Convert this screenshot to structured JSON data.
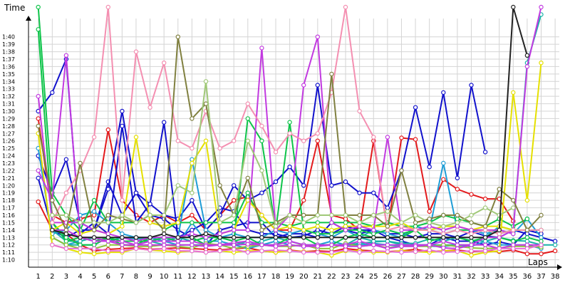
{
  "chart_data": {
    "type": "line",
    "ylabel": "Time",
    "xlabel": "Laps",
    "grid": true,
    "x_ticks": [
      1,
      2,
      3,
      4,
      5,
      6,
      7,
      8,
      9,
      10,
      11,
      12,
      13,
      14,
      15,
      16,
      17,
      18,
      19,
      20,
      21,
      22,
      23,
      24,
      25,
      26,
      27,
      28,
      29,
      30,
      31,
      32,
      33,
      34,
      35,
      36,
      37,
      38
    ],
    "y_tick_labels": [
      "1:10",
      "1:11",
      "1:12",
      "1:13",
      "1:14",
      "1:15",
      "1:16",
      "1:17",
      "1:18",
      "1:19",
      "1:20",
      "1:21",
      "1:22",
      "1:23",
      "1:24",
      "1:25",
      "1:26",
      "1:27",
      "1:28",
      "1:29",
      "1:30",
      "1:31",
      "1:32",
      "1:33",
      "1:34",
      "1:35",
      "1:36",
      "1:37",
      "1:38",
      "1:39",
      "1:40"
    ],
    "y_unit": "seconds",
    "ylim": [
      69,
      104
    ],
    "xlim": [
      0.3,
      38.3
    ],
    "series": [
      {
        "color": "#e31a1c",
        "values": [
          77.8,
          74,
          73.5,
          72,
          71.2,
          71.4,
          71.5,
          71.6,
          71.4,
          71.5,
          71.6,
          71.5,
          71.4,
          71.3,
          71.5,
          71.6,
          71.2,
          71,
          71.3,
          71.1,
          71.2,
          71.1,
          71.5,
          71.3,
          71.2,
          71.1,
          71.2,
          71.4,
          71.1,
          71.2,
          71.3,
          71.1,
          71.2,
          71.1,
          71.3,
          70.8,
          70.8,
          71.2
        ]
      },
      {
        "color": "#e31a1c",
        "values": [
          89,
          76,
          75,
          75.5,
          76,
          87.5,
          78,
          76,
          75,
          76,
          75,
          76,
          74,
          76,
          78,
          78.5,
          76,
          74,
          74,
          78,
          86,
          76,
          75.5,
          74,
          86,
          74,
          86.4,
          86.2,
          76.5,
          80.8,
          79.5,
          78.8,
          78.2,
          78.2,
          75.2,
          null,
          null,
          null
        ]
      },
      {
        "color": "#1111cc",
        "values": [
          84,
          79,
          83.5,
          75,
          74,
          80.5,
          76,
          79,
          76,
          75.5,
          74,
          73,
          72,
          74,
          74.5,
          75,
          75,
          73,
          73.5,
          73.5,
          73,
          75,
          74,
          73.5,
          74,
          73,
          72.5,
          72,
          72,
          73,
          72.5,
          72.5,
          72,
          72.4,
          72,
          74,
          73.5,
          null
        ]
      },
      {
        "color": "#1111cc",
        "values": [
          81,
          74,
          73,
          74,
          74,
          79.5,
          90,
          79,
          77.5,
          76,
          75.5,
          78,
          74,
          76,
          80,
          78,
          79,
          80.5,
          82.5,
          80,
          93.5,
          80,
          80.5,
          79,
          79,
          77,
          82,
          90.5,
          82.5,
          92.5,
          81,
          93.5,
          84.5,
          null,
          null,
          null,
          null,
          null
        ]
      },
      {
        "color": "#1111cc",
        "values": [
          90,
          92.5,
          97,
          73.5,
          75,
          73.5,
          88,
          75,
          77.5,
          88.5,
          73,
          74,
          75,
          77,
          76.5,
          74,
          73.5,
          73.5,
          73,
          73.2,
          74,
          73.5,
          74.5,
          74,
          74,
          73.5,
          73.5,
          73,
          73.5,
          73.5,
          73,
          73.8,
          73.2,
          73,
          74,
          73.5,
          73,
          72.5
        ]
      },
      {
        "color": "#1f9dd6",
        "values": [
          85,
          73,
          72,
          72.5,
          73,
          72.5,
          73,
          72.8,
          73,
          72.5,
          72,
          75,
          72.5,
          72.5,
          72,
          71.5,
          72,
          72.5,
          72,
          71.8,
          72,
          72.5,
          72,
          72,
          72.2,
          72,
          71.8,
          72,
          71.8,
          71.8,
          72,
          71.8,
          72.5,
          72,
          72,
          72,
          71.5,
          null
        ]
      },
      {
        "color": "#1f9dd6",
        "values": [
          null,
          73.5,
          74,
          76,
          76.5,
          75,
          73.5,
          73,
          73,
          72.5,
          73,
          83.5,
          74,
          73,
          73.5,
          73,
          73,
          74,
          73.5,
          74,
          73.5,
          73,
          74,
          73,
          74,
          73.5,
          73,
          74.5,
          74,
          83,
          74,
          74,
          73.5,
          74,
          73.5,
          75.5,
          73,
          null
        ]
      },
      {
        "color": "#19b2a8",
        "values": [
          null,
          74,
          72.5,
          72.5,
          73,
          72.5,
          73,
          73,
          72.5,
          73,
          73,
          72.5,
          73,
          73,
          72.5,
          72,
          72.5,
          73,
          72.5,
          72,
          72,
          72,
          72,
          72.2,
          72.4,
          72.5,
          72.2,
          72.2,
          72.8,
          72.5,
          73,
          72.6,
          72.5,
          73,
          72.6,
          72.5,
          72,
          72
        ]
      },
      {
        "color": "#19b2a8",
        "values": [
          null,
          73,
          72,
          72,
          72,
          73,
          72,
          72,
          72.5,
          72,
          72,
          72,
          72,
          72,
          72,
          72.5,
          72,
          72,
          72.5,
          72,
          72,
          72,
          72,
          73,
          72.5,
          72.5,
          72,
          72,
          72,
          72,
          72,
          72,
          73,
          74.5,
          74,
          96.5,
          103,
          null
        ]
      },
      {
        "color": "#0ec44a",
        "values": [
          104,
          79,
          76,
          74,
          78,
          75,
          75,
          75,
          76,
          74,
          75,
          75,
          75,
          75,
          75,
          79,
          75,
          75,
          74.5,
          75,
          75,
          75,
          75,
          75,
          74.5,
          75,
          74.5,
          74.5,
          75,
          76,
          75.5,
          75,
          74.5,
          75.5,
          74.5,
          75.5,
          null,
          null
        ]
      },
      {
        "color": "#0ec44a",
        "values": [
          101,
          75,
          72.5,
          73,
          72.5,
          73,
          72.5,
          72.5,
          72.5,
          73,
          72.5,
          72.5,
          73,
          73,
          72.5,
          89,
          86,
          74,
          88.5,
          74,
          73.5,
          73.5,
          74,
          74,
          73.5,
          74,
          73.5,
          74,
          74,
          73.5,
          74,
          74,
          74,
          73.5,
          74,
          74,
          74,
          null
        ]
      },
      {
        "color": "#0ec44a",
        "values": [
          null,
          75,
          73,
          72,
          72,
          73,
          72,
          72,
          73,
          73,
          73,
          73,
          72,
          73,
          72.5,
          73,
          72,
          72,
          73,
          73,
          72,
          72,
          73,
          73.5,
          73,
          73,
          73,
          74,
          72.5,
          73,
          73,
          72.5,
          73,
          73,
          72.5,
          73,
          72.5,
          null
        ]
      },
      {
        "color": "#8fc23a",
        "values": [
          null,
          73,
          72,
          71.5,
          71.5,
          72,
          72,
          71.8,
          71.8,
          72,
          71.8,
          71.6,
          72.2,
          72,
          71.5,
          71.8,
          72,
          71.8,
          71.8,
          72,
          71.5,
          71.5,
          72.2,
          71.8,
          72,
          71.6,
          71.8,
          71.8,
          71.8,
          72,
          71.8,
          71.6,
          71.5,
          71.6,
          71.8,
          71.8,
          71.7,
          null
        ]
      },
      {
        "color": "#e5e000",
        "values": [
          87,
          72,
          71.5,
          71,
          70.8,
          71,
          71,
          71.5,
          71.3,
          71.2,
          71,
          71.2,
          71,
          71.2,
          71,
          71.2,
          71.2,
          71,
          71.2,
          71.1,
          71,
          70.6,
          71.2,
          71.2,
          71,
          71,
          71.2,
          71.1,
          71,
          71.2,
          71.2,
          70.6,
          71,
          71.2,
          92.5,
          78,
          96.5,
          null
        ]
      },
      {
        "color": "#e5e000",
        "values": [
          null,
          74,
          75,
          73.5,
          74,
          73.5,
          74.5,
          86.5,
          75,
          74.5,
          75,
          83,
          86,
          73.5,
          74,
          78,
          76,
          74,
          74.5,
          74,
          74.5,
          74,
          74.5,
          74.5,
          74.5,
          74.5,
          75,
          74,
          74,
          74.5,
          74.5,
          74,
          74.5,
          74.5,
          74,
          74,
          null,
          null
        ]
      },
      {
        "color": "#c23ae0",
        "values": [
          82,
          78,
          97.5,
          73,
          72.5,
          72.5,
          72,
          72,
          72.5,
          72.5,
          72.5,
          72.5,
          72,
          72,
          72.3,
          72.5,
          72,
          72,
          72.5,
          72,
          72,
          72,
          72,
          72.5,
          72,
          72,
          72,
          72,
          72,
          72.5,
          72,
          72,
          73,
          73,
          74,
          96,
          104,
          null
        ]
      },
      {
        "color": "#c23ae0",
        "values": [
          92,
          75,
          75,
          75,
          74,
          73.5,
          73,
          72.5,
          73,
          73,
          73,
          73.5,
          73,
          73.5,
          74,
          74,
          98.5,
          74,
          76,
          93.5,
          100,
          75,
          74,
          74.5,
          74,
          86.5,
          74,
          74,
          74.5,
          74,
          74.5,
          74,
          74,
          74,
          73.5,
          null,
          null,
          null
        ]
      },
      {
        "color": "#c23ae0",
        "values": [
          null,
          74,
          74,
          73,
          73,
          72.5,
          72.5,
          72,
          72,
          72,
          72,
          72,
          71.8,
          72,
          72,
          72.1,
          72,
          71.8,
          72,
          71.8,
          71.8,
          72,
          71.8,
          71.8,
          72,
          71.5,
          71.8,
          71.8,
          72,
          71.6,
          71.5,
          72,
          72,
          71.5,
          72,
          72,
          72,
          null
        ]
      },
      {
        "color": "#e86fd8",
        "values": [
          null,
          72,
          71.5,
          71.5,
          71.5,
          71.2,
          71.2,
          71.5,
          71.3,
          71.5,
          71.2,
          71.2,
          71,
          71.2,
          71.4,
          71,
          71.2,
          71.3,
          71.2,
          71,
          71,
          71,
          71.3,
          71,
          71.2,
          71.1,
          71,
          71.1,
          71.3,
          71,
          71.1,
          71.2,
          71.2,
          71.5,
          71.5,
          71.5,
          72,
          null
        ]
      },
      {
        "color": "#f48fb1",
        "values": [
          null,
          75,
          79,
          82,
          86.5,
          104,
          78,
          98,
          90.5,
          96.5,
          86,
          85,
          90,
          85,
          86,
          91,
          88,
          84.5,
          87,
          86,
          87,
          92.5,
          104,
          90,
          86.5,
          74,
          74.5,
          74,
          74,
          73.5,
          74,
          73.5,
          74,
          73.5,
          74,
          74,
          74,
          null
        ]
      },
      {
        "color": "#808040",
        "values": [
          88,
          78,
          74,
          83,
          74,
          76,
          75.5,
          75,
          76,
          74,
          100,
          89,
          91,
          80,
          76,
          81,
          74,
          75,
          76,
          76,
          76,
          95,
          76,
          76,
          76,
          74.5,
          82,
          75,
          75.5,
          76,
          76,
          75,
          74.5,
          79.5,
          78,
          74,
          76,
          null
        ]
      },
      {
        "color": "#a0c878",
        "values": [
          null,
          76,
          76,
          75,
          75,
          75,
          76,
          75,
          76,
          76,
          80,
          79,
          94,
          75,
          76,
          86,
          82,
          74.5,
          76,
          75,
          76,
          76,
          76,
          75,
          76,
          76.5,
          75,
          76,
          75,
          74.5,
          75,
          76,
          77,
          76,
          77,
          null,
          null,
          null
        ]
      },
      {
        "color": "#222222",
        "values": [
          null,
          74,
          73.5,
          73,
          73,
          73,
          73,
          73,
          73,
          73.5,
          73,
          73,
          73.5,
          73,
          73,
          73,
          73,
          73,
          73,
          73,
          73,
          73,
          73,
          73,
          73,
          73,
          73,
          73,
          73,
          73,
          73,
          73,
          73,
          74,
          104,
          97.5,
          null,
          null
        ]
      }
    ]
  }
}
